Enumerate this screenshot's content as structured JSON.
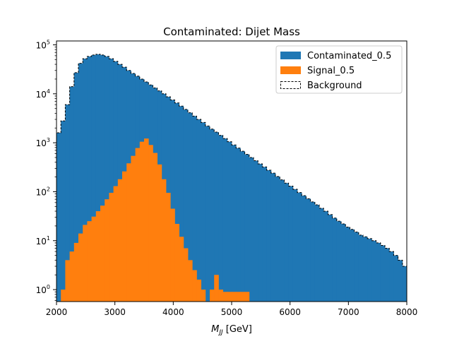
{
  "chart_data": {
    "type": "histogram",
    "title": "Contaminated: Dijet Mass",
    "xlabel_main": "M",
    "xlabel_sub": "JJ",
    "xlabel_unit": " [GeV]",
    "xlim": [
      2000,
      8000
    ],
    "ylim": [
      0.57,
      120000
    ],
    "yscale": "log",
    "grid": false,
    "legend_position": "top-right",
    "x_ticks": [
      2000,
      3000,
      4000,
      5000,
      6000,
      7000,
      8000
    ],
    "x_tick_labels": [
      "2000",
      "3000",
      "4000",
      "5000",
      "6000",
      "7000",
      "8000"
    ],
    "y_ticks": [
      {
        "value": 1,
        "base": "10",
        "exp": "0"
      },
      {
        "value": 10,
        "base": "10",
        "exp": "1"
      },
      {
        "value": 100,
        "base": "10",
        "exp": "2"
      },
      {
        "value": 1000,
        "base": "10",
        "exp": "3"
      },
      {
        "value": 10000,
        "base": "10",
        "exp": "4"
      },
      {
        "value": 100000,
        "base": "10",
        "exp": "5"
      }
    ],
    "bin_edges": {
      "start": 2000,
      "end": 8000,
      "width": 75
    },
    "series": [
      {
        "name": "Contaminated_0.5",
        "style": "filled",
        "color": "#1f77b4",
        "values": [
          1600,
          2800,
          6000,
          14000,
          27000,
          42000,
          52000,
          58000,
          62000,
          64000,
          62000,
          58000,
          52000,
          46000,
          40000,
          35000,
          30000,
          26000,
          23000,
          20000,
          17500,
          15200,
          13200,
          11500,
          10000,
          8700,
          7500,
          6500,
          5600,
          4800,
          4100,
          3500,
          3000,
          2600,
          2200,
          1900,
          1650,
          1420,
          1220,
          1050,
          900,
          780,
          670,
          580,
          500,
          430,
          370,
          320,
          275,
          240,
          205,
          175,
          150,
          130,
          112,
          96,
          83,
          72,
          62,
          54,
          46,
          40,
          34,
          29,
          25,
          22,
          19,
          17,
          15,
          13,
          12,
          11,
          10,
          9,
          8,
          7,
          6,
          5,
          4,
          3
        ]
      },
      {
        "name": "Signal_0.5",
        "style": "filled",
        "color": "#ff7f0e",
        "values": [
          null,
          1,
          4,
          6,
          9,
          14,
          21,
          25,
          31,
          40,
          52,
          70,
          95,
          130,
          180,
          260,
          380,
          540,
          780,
          1050,
          1220,
          900,
          620,
          360,
          180,
          95,
          45,
          22,
          12,
          7,
          4,
          2.5,
          1.6,
          1,
          null,
          1,
          2,
          1,
          0.9,
          0.9,
          0.9,
          0.9,
          0.9,
          0.9,
          null,
          null,
          null,
          null,
          null,
          null,
          null,
          null,
          null,
          null,
          null,
          null,
          null,
          null,
          null,
          null,
          null,
          null,
          null,
          null,
          null,
          null,
          null,
          null,
          null,
          null,
          null,
          null,
          null,
          null,
          null,
          null,
          null,
          null,
          null,
          null
        ]
      },
      {
        "name": "Background",
        "style": "step-dashed",
        "color": "#000000",
        "values": [
          1600,
          2800,
          6000,
          14000,
          27000,
          42000,
          52000,
          58000,
          62000,
          64000,
          62000,
          58000,
          52000,
          46000,
          40000,
          35000,
          30000,
          26000,
          23000,
          20000,
          17500,
          15200,
          13200,
          11500,
          10000,
          8700,
          7500,
          6500,
          5600,
          4800,
          4100,
          3500,
          3000,
          2600,
          2200,
          1900,
          1650,
          1420,
          1220,
          1050,
          900,
          780,
          670,
          580,
          500,
          430,
          370,
          320,
          275,
          240,
          205,
          175,
          150,
          130,
          112,
          96,
          83,
          72,
          62,
          54,
          46,
          40,
          34,
          29,
          25,
          22,
          19,
          17,
          15,
          13,
          12,
          11,
          10,
          9,
          8,
          7,
          6,
          5,
          4,
          3
        ]
      }
    ]
  }
}
